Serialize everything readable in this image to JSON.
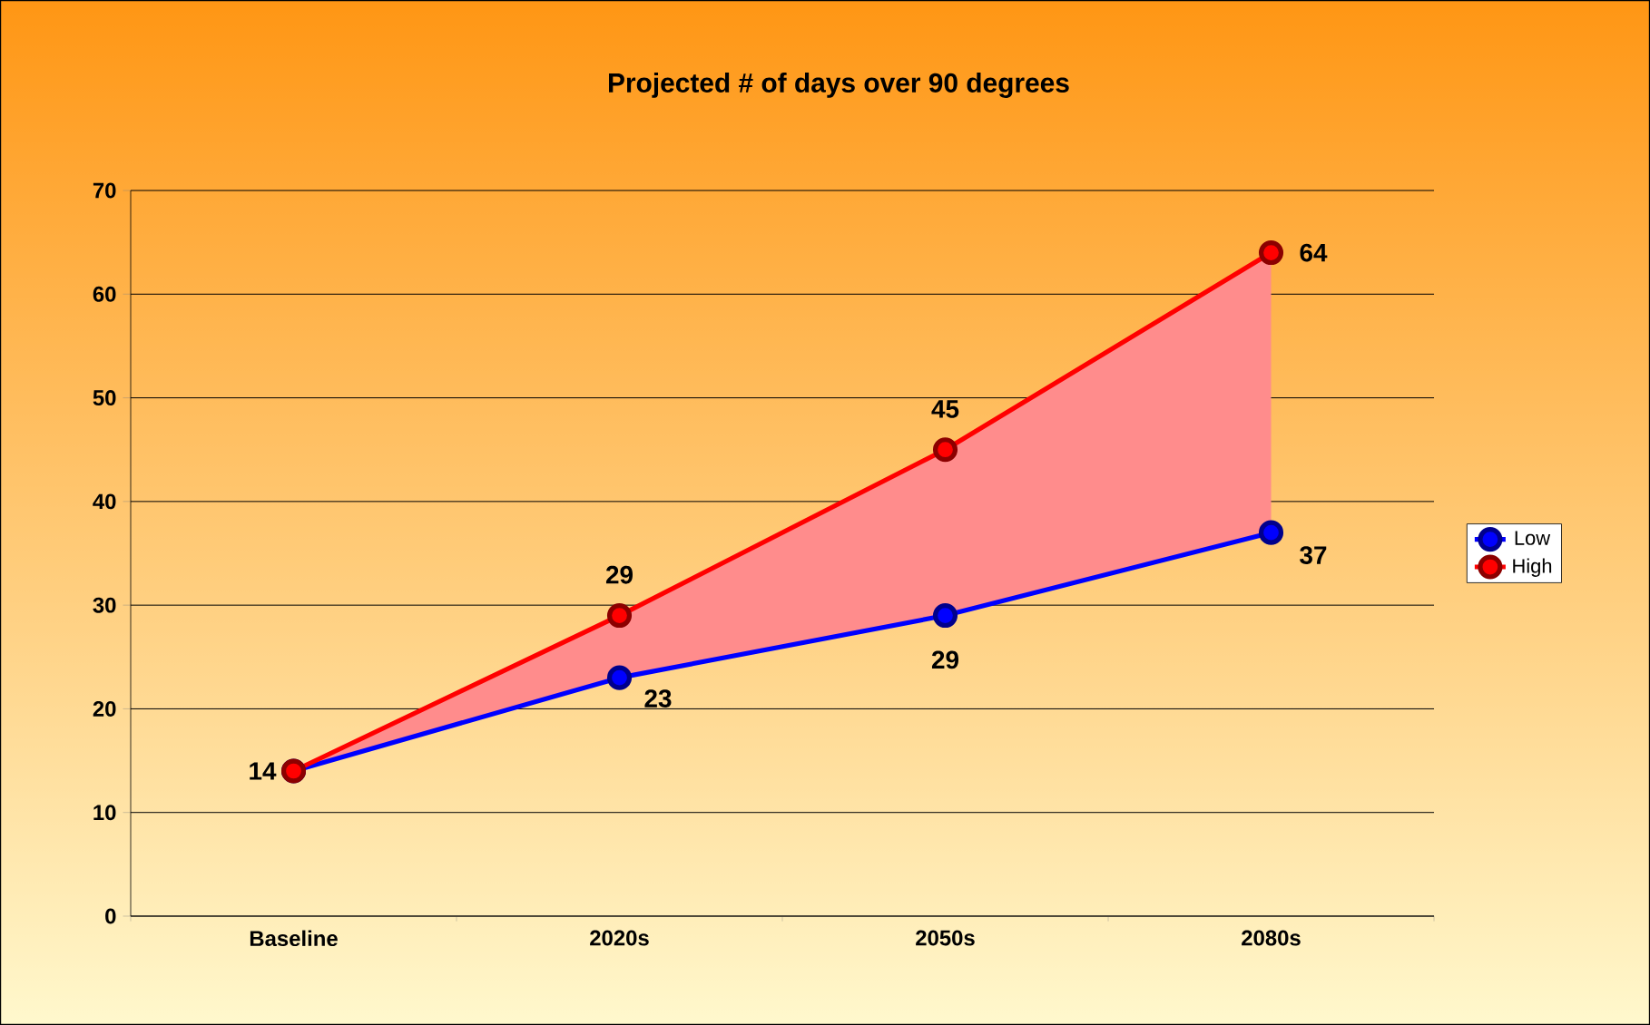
{
  "chart_data": {
    "type": "line",
    "title": "Projected # of days over 90 degrees",
    "categories": [
      "Baseline",
      "2020s",
      "2050s",
      "2080s"
    ],
    "series": [
      {
        "name": "Low",
        "color": "#0000ff",
        "values": [
          14,
          23,
          29,
          37
        ],
        "value_labels": [
          "14",
          "23",
          "29",
          "37"
        ]
      },
      {
        "name": "High",
        "color": "#ff0000",
        "values": [
          14,
          29,
          45,
          64
        ],
        "value_labels": [
          null,
          "29",
          "45",
          "64"
        ],
        "lower": [
          14,
          23,
          29,
          37
        ],
        "upper": [
          14,
          29,
          45,
          64
        ]
      }
    ],
    "ylim": [
      0,
      70
    ],
    "yticks": [
      0,
      10,
      20,
      30,
      40,
      50,
      60,
      70
    ],
    "grid": "y",
    "legend": "right",
    "marker": "circle",
    "line_style": "solid"
  }
}
